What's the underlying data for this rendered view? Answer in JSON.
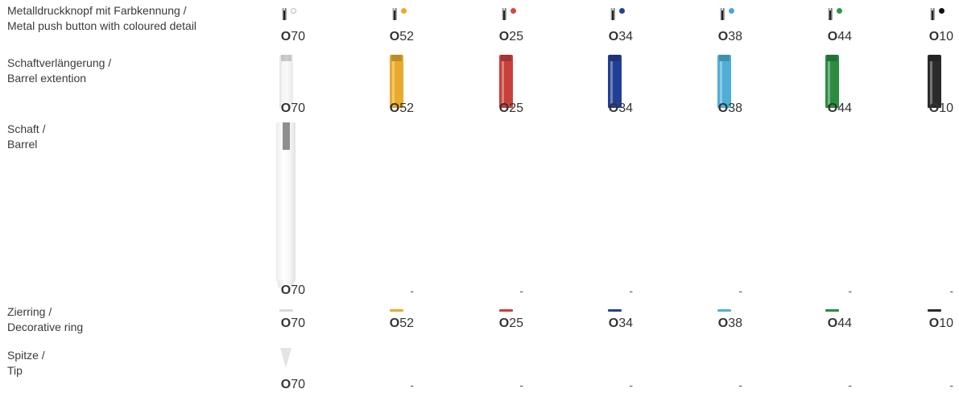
{
  "rows": {
    "push_button": {
      "label_de": "Metalldruckknopf mit Farbkennung /",
      "label_en": "Metal push button with coloured detail"
    },
    "extension": {
      "label_de": "Schaftverlängerung /",
      "label_en": "Barrel extention"
    },
    "barrel": {
      "label_de": "Schaft /",
      "label_en": "Barrel"
    },
    "ring": {
      "label_de": "Zierring /",
      "label_en": "Decorative ring"
    },
    "tip": {
      "label_de": "Spitze /",
      "label_en": "Tip"
    }
  },
  "colors": [
    {
      "prefix": "O",
      "num": "70",
      "hex": "#f0f0f0",
      "ring": "#d9d9d9",
      "dot": "#ffffff",
      "dot_border": "#bbbbbb"
    },
    {
      "prefix": "O",
      "num": "52",
      "hex": "#e8ab2b",
      "ring": "#e8ab2b",
      "dot": "#efaa2a",
      "dot_border": "#efaa2a"
    },
    {
      "prefix": "O",
      "num": "25",
      "hex": "#c8403a",
      "ring": "#c8403a",
      "dot": "#d14a48",
      "dot_border": "#d14a48"
    },
    {
      "prefix": "O",
      "num": "34",
      "hex": "#233f94",
      "ring": "#233f94",
      "dot": "#25409a",
      "dot_border": "#25409a"
    },
    {
      "prefix": "O",
      "num": "38",
      "hex": "#4faed6",
      "ring": "#4faed6",
      "dot": "#4aa8d8",
      "dot_border": "#4aa8d8"
    },
    {
      "prefix": "O",
      "num": "44",
      "hex": "#2b8c40",
      "ring": "#2b8c40",
      "dot": "#2e9a45",
      "dot_border": "#2e9a45"
    },
    {
      "prefix": "O",
      "num": "10",
      "hex": "#2b2b2b",
      "ring": "#2b2b2b",
      "dot": "#111111",
      "dot_border": "#111111"
    }
  ],
  "barrel_codes": [
    "O70",
    "-",
    "-",
    "-",
    "-",
    "-",
    "-"
  ],
  "tip_codes": [
    "O70",
    "-",
    "-",
    "-",
    "-",
    "-",
    "-"
  ]
}
